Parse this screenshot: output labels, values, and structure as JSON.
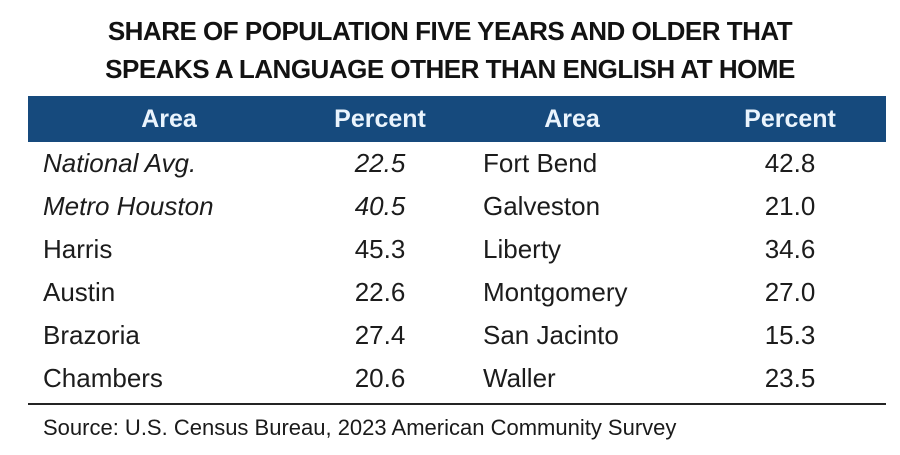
{
  "title": {
    "line1": "SHARE OF POPULATION FIVE YEARS AND OLDER THAT",
    "line2": "SPEAKS A LANGUAGE OTHER THAN ENGLISH AT HOME"
  },
  "table": {
    "headers": [
      "Area",
      "Percent",
      "Area",
      "Percent"
    ],
    "rows": [
      {
        "area_left": "National Avg.",
        "pct_left": "22.5",
        "left_italic": true,
        "area_right": "Fort Bend",
        "pct_right": "42.8"
      },
      {
        "area_left": "Metro Houston",
        "pct_left": "40.5",
        "left_italic": true,
        "area_right": "Galveston",
        "pct_right": "21.0"
      },
      {
        "area_left": "Harris",
        "pct_left": "45.3",
        "left_italic": false,
        "area_right": "Liberty",
        "pct_right": "34.6"
      },
      {
        "area_left": "Austin",
        "pct_left": "22.6",
        "left_italic": false,
        "area_right": "Montgomery",
        "pct_right": "27.0"
      },
      {
        "area_left": "Brazoria",
        "pct_left": "27.4",
        "left_italic": false,
        "area_right": "San Jacinto",
        "pct_right": "15.3"
      },
      {
        "area_left": "Chambers",
        "pct_left": "20.6",
        "left_italic": false,
        "area_right": "Waller",
        "pct_right": "23.5"
      }
    ]
  },
  "source": "Source: U.S. Census Bureau, 2023 American Community Survey",
  "colors": {
    "header_bg": "#164A7D",
    "header_text": "#EAF4FD",
    "body_text": "#1C1C1C"
  },
  "chart_data": {
    "type": "table",
    "title": "SHARE OF POPULATION FIVE YEARS AND OLDER THAT SPEAKS A LANGUAGE OTHER THAN ENGLISH AT HOME",
    "columns": [
      "Area",
      "Percent"
    ],
    "records": [
      {
        "area": "National Avg.",
        "percent": 22.5
      },
      {
        "area": "Metro Houston",
        "percent": 40.5
      },
      {
        "area": "Harris",
        "percent": 45.3
      },
      {
        "area": "Austin",
        "percent": 22.6
      },
      {
        "area": "Brazoria",
        "percent": 27.4
      },
      {
        "area": "Chambers",
        "percent": 20.6
      },
      {
        "area": "Fort Bend",
        "percent": 42.8
      },
      {
        "area": "Galveston",
        "percent": 21.0
      },
      {
        "area": "Liberty",
        "percent": 34.6
      },
      {
        "area": "Montgomery",
        "percent": 27.0
      },
      {
        "area": "San Jacinto",
        "percent": 15.3
      },
      {
        "area": "Waller",
        "percent": 23.5
      }
    ],
    "source": "Source: U.S. Census Bureau, 2023 American Community Survey"
  }
}
